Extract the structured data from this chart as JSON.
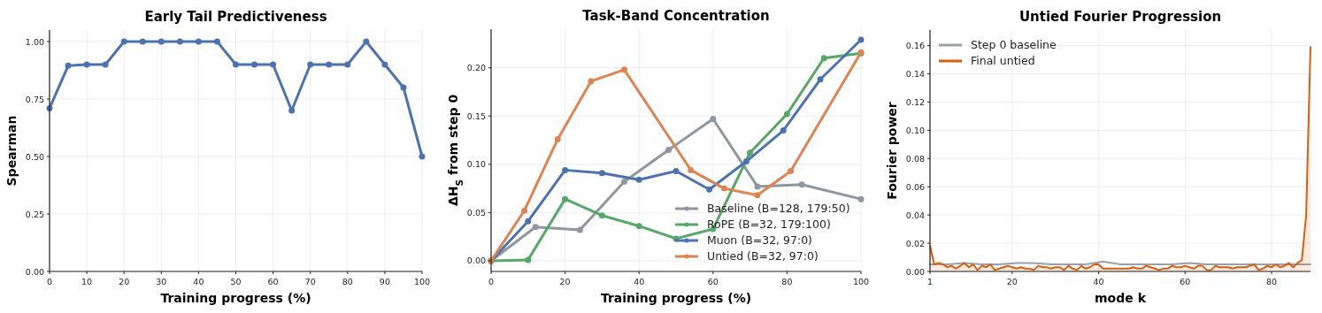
{
  "chart_data": [
    {
      "type": "line",
      "title": "Early Tail Predictiveness",
      "xlabel": "Training progress (%)",
      "ylabel": "Spearman",
      "x": [
        0,
        5,
        10,
        15,
        20,
        25,
        30,
        35,
        40,
        45,
        50,
        55,
        60,
        65,
        70,
        75,
        80,
        85,
        90,
        95,
        100
      ],
      "series": [
        {
          "color": "#4c72b0",
          "values": [
            0.71,
            0.895,
            0.9,
            0.9,
            1,
            1,
            1,
            1,
            1,
            1,
            0.9,
            0.9,
            0.9,
            0.7,
            0.9,
            0.9,
            0.9,
            1,
            0.9,
            0.8,
            0.5
          ]
        }
      ],
      "xlim": [
        0,
        100
      ],
      "xticks": [
        0,
        10,
        20,
        30,
        40,
        50,
        60,
        70,
        80,
        90,
        100
      ],
      "ylim": [
        0,
        1.05
      ],
      "yticks": [
        {
          "value": 0,
          "label": "0.00"
        },
        {
          "value": 0.25,
          "label": "0.25"
        },
        {
          "value": 0.5,
          "label": "0.50"
        },
        {
          "value": 0.75,
          "label": "0.75"
        },
        {
          "value": 1,
          "label": "1.00"
        }
      ],
      "grid": true,
      "marker": "circle",
      "legend": false
    },
    {
      "type": "line",
      "title": "Task-Band Concentration",
      "xlabel": "Training progress (%)",
      "ylabel": "ΔH$_{S}$ from step 0",
      "series": [
        {
          "name": "Baseline (B=128, 179:50)",
          "color": "#8f96a0",
          "x": [
            0,
            12,
            24,
            36,
            48,
            60,
            72,
            84,
            100
          ],
          "values": [
            0,
            0.035,
            0.032,
            0.082,
            0.115,
            0.147,
            0.077,
            0.079,
            0.064
          ]
        },
        {
          "name": "RoPE (B=32, 179:100)",
          "color": "#55a868",
          "x": [
            0,
            10,
            20,
            30,
            40,
            50,
            60,
            70,
            80,
            90,
            100
          ],
          "values": [
            0,
            0.001,
            0.064,
            0.047,
            0.036,
            0.023,
            0.033,
            0.112,
            0.152,
            0.21,
            0.215
          ]
        },
        {
          "name": "Muon (B=32, 97:0)",
          "color": "#4c72b0",
          "x": [
            0,
            10,
            20,
            30,
            40,
            50,
            59,
            69,
            79,
            89,
            100
          ],
          "values": [
            0,
            0.041,
            0.094,
            0.091,
            0.084,
            0.093,
            0.074,
            0.103,
            0.135,
            0.188,
            0.229
          ]
        },
        {
          "name": "Untied (B=32, 97:0)",
          "color": "#dd8452",
          "x": [
            0,
            9,
            18,
            27,
            36,
            54,
            63,
            72,
            81,
            100
          ],
          "values": [
            0,
            0.052,
            0.126,
            0.186,
            0.198,
            0.094,
            0.075,
            0.068,
            0.093,
            0.216
          ]
        }
      ],
      "xlim": [
        0,
        100
      ],
      "xticks": [
        0,
        20,
        40,
        60,
        80,
        100
      ],
      "ylim": [
        -0.011,
        0.24
      ],
      "yticks": [
        {
          "value": 0,
          "label": "0.00"
        },
        {
          "value": 0.05,
          "label": "0.05"
        },
        {
          "value": 0.1,
          "label": "0.10"
        },
        {
          "value": 0.15,
          "label": "0.15"
        },
        {
          "value": 0.2,
          "label": "0.20"
        }
      ],
      "grid": true,
      "marker": "circle",
      "legend": "bottom right"
    },
    {
      "type": "line",
      "title": "Untied Fourier Progression",
      "xlabel": "mode k",
      "ylabel": "Fourier power",
      "series": [
        {
          "name": "Step 0 baseline",
          "color": "#9aa0ab",
          "x": [
            1,
            5,
            9,
            13,
            17,
            21,
            25,
            29,
            33,
            37,
            41,
            45,
            49,
            53,
            57,
            61,
            65,
            69,
            73,
            77,
            81,
            85,
            89
          ],
          "values": [
            0.005,
            0.005,
            0.006,
            0.005,
            0.005,
            0.006,
            0.006,
            0.005,
            0.005,
            0.005,
            0.007,
            0.005,
            0.005,
            0.005,
            0.005,
            0.006,
            0.005,
            0.005,
            0.005,
            0.005,
            0.005,
            0.005,
            0.005
          ]
        },
        {
          "name": "Final untied",
          "type": "area",
          "color": "#d95f0e",
          "x": [
            1,
            2,
            3,
            4,
            5,
            6,
            7,
            8,
            9,
            10,
            11,
            12,
            13,
            14,
            15,
            16,
            17,
            18,
            19,
            20,
            21,
            22,
            23,
            24,
            25,
            26,
            27,
            28,
            29,
            30,
            31,
            32,
            33,
            34,
            35,
            36,
            37,
            38,
            39,
            40,
            41,
            42,
            43,
            44,
            45,
            46,
            47,
            48,
            49,
            50,
            51,
            52,
            53,
            54,
            55,
            56,
            57,
            58,
            59,
            60,
            61,
            62,
            63,
            64,
            65,
            66,
            67,
            68,
            69,
            70,
            71,
            72,
            73,
            74,
            75,
            76,
            77,
            78,
            79,
            80,
            81,
            82,
            83,
            84,
            85,
            86,
            87,
            88,
            89
          ],
          "values": [
            0.018,
            0.005,
            0.006,
            0.005,
            0.003,
            0.004,
            0.002,
            0.004,
            0.006,
            0.003,
            0.005,
            0.001,
            0.004,
            0.003,
            0.005,
            0.001,
            0.002,
            0.003,
            0.004,
            0.003,
            0.002,
            0.003,
            0.002,
            0.002,
            0.001,
            0.004,
            0.003,
            0.003,
            0.002,
            0.003,
            0.003,
            0.001,
            0.004,
            0.002,
            0.001,
            0.004,
            0.002,
            0.003,
            0.005,
            0.005,
            0.002,
            0.002,
            0.002,
            0.002,
            0.002,
            0.002,
            0.002,
            0.003,
            0.002,
            0.002,
            0.004,
            0.003,
            0.002,
            0.001,
            0.002,
            0.002,
            0.004,
            0.003,
            0.003,
            0.004,
            0.003,
            0.002,
            0.004,
            0.004,
            0.001,
            0.001,
            0.004,
            0.003,
            0.003,
            0.003,
            0.002,
            0.003,
            0.003,
            0.003,
            0.004,
            0.005,
            0.001,
            0.002,
            0.004,
            0.003,
            0.005,
            0.003,
            0.004,
            0.006,
            0.003,
            0.006,
            0.008,
            0.04,
            0.159
          ]
        }
      ],
      "xlim": [
        1,
        89
      ],
      "xticks": [
        1,
        20,
        40,
        60,
        80
      ],
      "ylim": [
        0,
        0.171
      ],
      "yticks": [
        {
          "value": 0,
          "label": "0.00"
        },
        {
          "value": 0.02,
          "label": "0.02"
        },
        {
          "value": 0.04,
          "label": "0.04"
        },
        {
          "value": 0.06,
          "label": "0.06"
        },
        {
          "value": 0.08,
          "label": "0.08"
        },
        {
          "value": 0.1,
          "label": "0.10"
        },
        {
          "value": 0.12,
          "label": "0.12"
        },
        {
          "value": 0.14,
          "label": "0.14"
        },
        {
          "value": 0.16,
          "label": "0.16"
        }
      ],
      "grid": true,
      "legend": "top left"
    }
  ]
}
